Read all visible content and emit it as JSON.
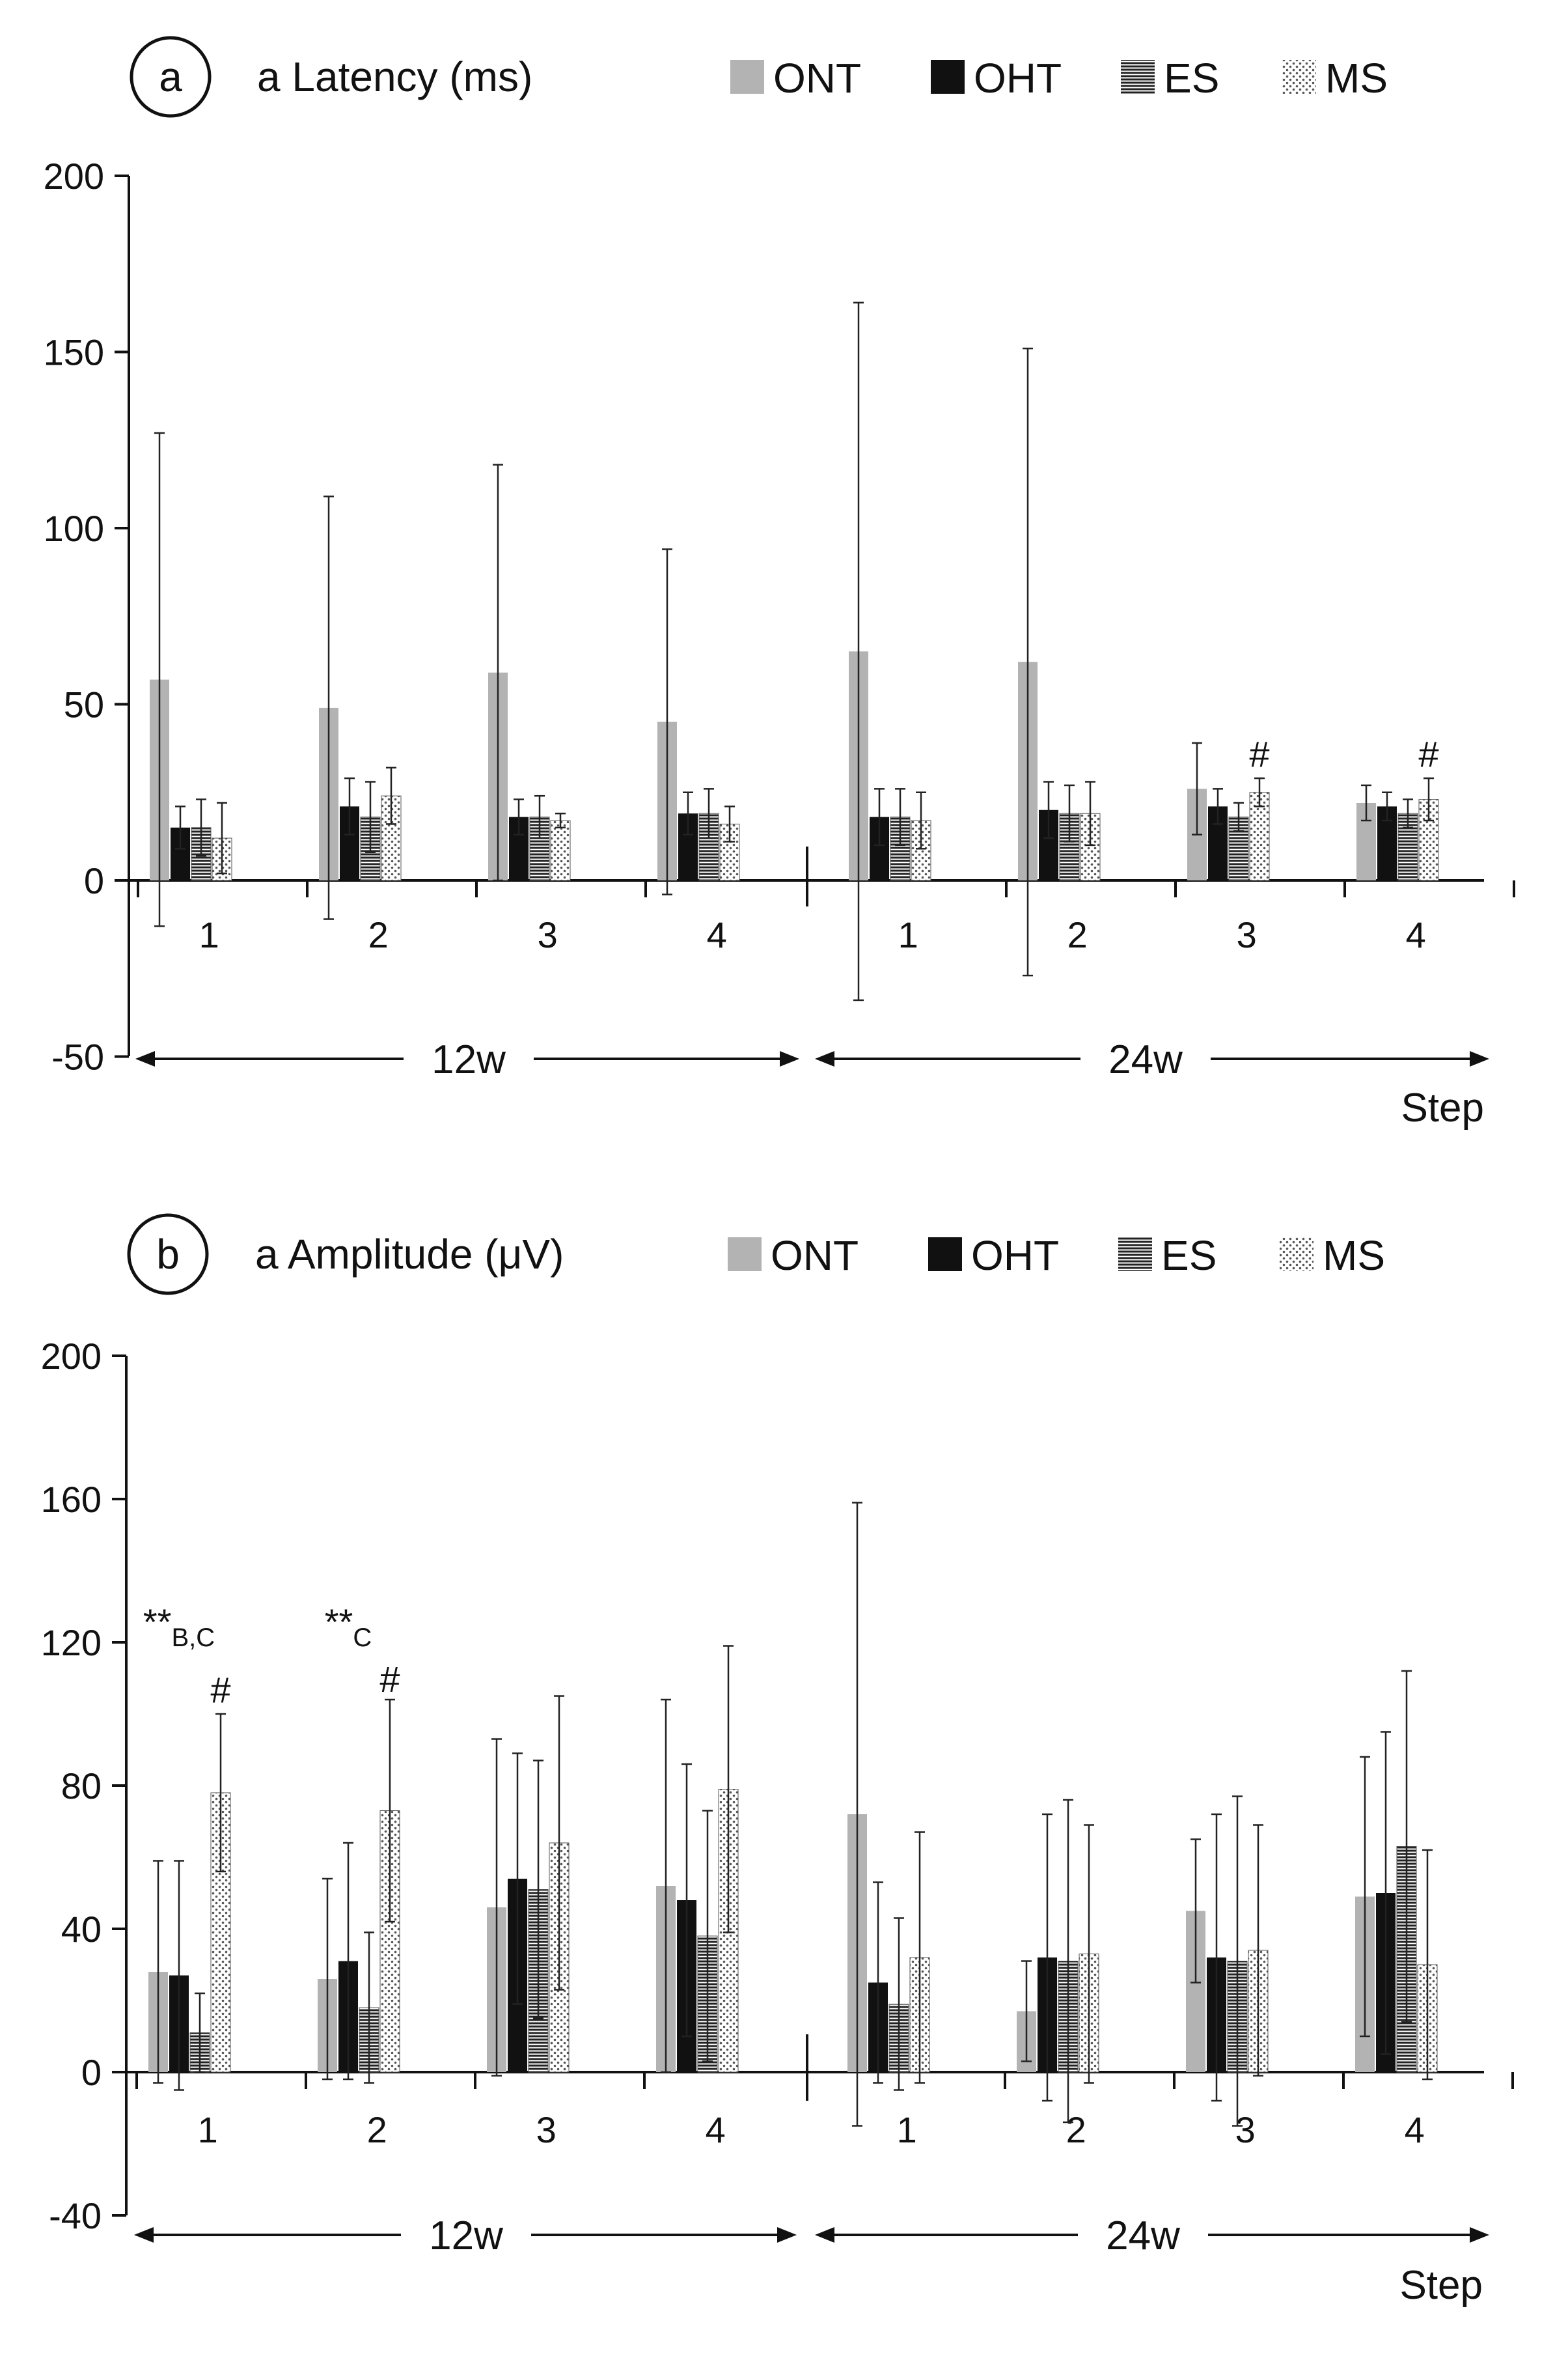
{
  "chart_data": [
    {
      "type": "bar",
      "panel_label": "a",
      "title": "a Latency (ms)",
      "xlabel": "Step",
      "ylabel": "",
      "ylim": [
        -50,
        200
      ],
      "yticks": [
        "200",
        "150",
        "100",
        "50",
        "0",
        "-50"
      ],
      "ytick_values": [
        200,
        150,
        100,
        50,
        0,
        -50
      ],
      "legend": [
        {
          "label": "ONT",
          "pattern": "solid-gray",
          "color": "#b3b3b3"
        },
        {
          "label": "OHT",
          "pattern": "solid-black",
          "color": "#111111"
        },
        {
          "label": "ES",
          "pattern": "horizontal-lines",
          "color": "#444444"
        },
        {
          "label": "MS",
          "pattern": "dots",
          "color": "#666666"
        }
      ],
      "categories": [
        "1",
        "2",
        "3",
        "4",
        "1",
        "2",
        "3",
        "4"
      ],
      "groups": [
        {
          "label": "12w",
          "start": 0,
          "count": 4
        },
        {
          "label": "24w",
          "start": 4,
          "count": 4
        }
      ],
      "series": [
        {
          "name": "ONT",
          "values": [
            57,
            49,
            59,
            45,
            65,
            62,
            26,
            22
          ],
          "errors": [
            70,
            60,
            59,
            49,
            99,
            89,
            13,
            5
          ]
        },
        {
          "name": "OHT",
          "values": [
            15,
            21,
            18,
            19,
            18,
            20,
            21,
            21
          ],
          "errors": [
            6,
            8,
            5,
            6,
            8,
            8,
            5,
            4
          ]
        },
        {
          "name": "ES",
          "values": [
            15,
            18,
            18,
            19,
            18,
            19,
            18,
            19
          ],
          "errors": [
            8,
            10,
            6,
            7,
            8,
            8,
            4,
            4
          ]
        },
        {
          "name": "MS",
          "values": [
            12,
            24,
            17,
            16,
            17,
            19,
            25,
            23
          ],
          "errors": [
            10,
            8,
            2,
            5,
            8,
            9,
            4,
            6
          ]
        }
      ],
      "annotations": [
        {
          "text": "#",
          "category": 6,
          "series": 3,
          "above": 30
        },
        {
          "text": "#",
          "category": 7,
          "series": 3,
          "above": 30
        }
      ]
    },
    {
      "type": "bar",
      "panel_label": "b",
      "title": "a Amplitude (μV)",
      "xlabel": "Step",
      "ylabel": "",
      "ylim": [
        -40,
        200
      ],
      "yticks": [
        "200",
        "160",
        "120",
        "80",
        "40",
        "0",
        "-40"
      ],
      "ytick_values": [
        200,
        160,
        120,
        80,
        40,
        0,
        -40
      ],
      "legend": [
        {
          "label": "ONT",
          "pattern": "solid-gray",
          "color": "#b3b3b3"
        },
        {
          "label": "OHT",
          "pattern": "solid-black",
          "color": "#111111"
        },
        {
          "label": "ES",
          "pattern": "horizontal-lines",
          "color": "#444444"
        },
        {
          "label": "MS",
          "pattern": "dots",
          "color": "#666666"
        }
      ],
      "categories": [
        "1",
        "2",
        "3",
        "4",
        "1",
        "2",
        "3",
        "4"
      ],
      "groups": [
        {
          "label": "12w",
          "start": 0,
          "count": 4
        },
        {
          "label": "24w",
          "start": 4,
          "count": 4
        }
      ],
      "series": [
        {
          "name": "ONT",
          "values": [
            28,
            26,
            46,
            52,
            72,
            17,
            45,
            49
          ],
          "errors": [
            31,
            28,
            47,
            52,
            87,
            14,
            20,
            39
          ]
        },
        {
          "name": "OHT",
          "values": [
            27,
            31,
            54,
            48,
            25,
            32,
            32,
            50
          ],
          "errors": [
            32,
            33,
            35,
            38,
            28,
            40,
            40,
            45
          ]
        },
        {
          "name": "ES",
          "values": [
            11,
            18,
            51,
            38,
            19,
            31,
            31,
            63
          ],
          "errors": [
            11,
            21,
            36,
            35,
            24,
            45,
            46,
            49
          ]
        },
        {
          "name": "MS",
          "values": [
            78,
            73,
            64,
            79,
            32,
            33,
            34,
            30
          ],
          "errors": [
            22,
            31,
            41,
            40,
            35,
            36,
            35,
            32
          ]
        }
      ],
      "annotations": [
        {
          "text": "**",
          "sub": "B,C",
          "category": 0,
          "series": 1,
          "above": 120
        },
        {
          "text": "#",
          "category": 0,
          "series": 3,
          "above": 101
        },
        {
          "text": "**",
          "sub": "C",
          "category": 1,
          "series": 1,
          "above": 120
        },
        {
          "text": "#",
          "category": 1,
          "series": 3,
          "above": 104
        }
      ]
    }
  ]
}
